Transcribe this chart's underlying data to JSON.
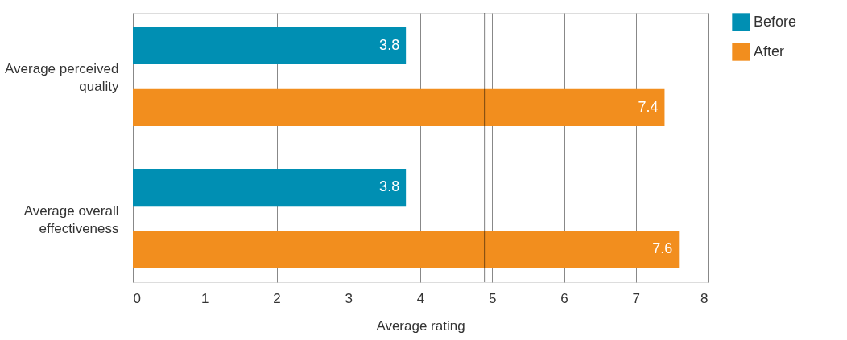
{
  "chart_data": {
    "type": "bar",
    "orientation": "horizontal",
    "xlabel": "Average rating",
    "categories": [
      "Average perceived quality",
      "Average overall effectiveness"
    ],
    "series": [
      {
        "name": "Before",
        "color": "#008fb3",
        "values": [
          3.8,
          3.8
        ]
      },
      {
        "name": "After",
        "color": "#f28e1e",
        "values": [
          7.4,
          7.6
        ]
      }
    ],
    "xlim": [
      0,
      8
    ],
    "xticks": [
      0,
      1,
      2,
      3,
      4,
      5,
      6,
      7,
      8
    ],
    "grid": "x",
    "data_labels": true,
    "legend": "top right",
    "ref_lines": [
      {
        "axis": "x",
        "value": 4.9,
        "color": "#000000"
      }
    ]
  }
}
